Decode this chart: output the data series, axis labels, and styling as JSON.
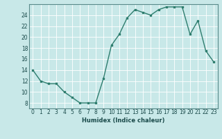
{
  "x": [
    0,
    1,
    2,
    3,
    4,
    5,
    6,
    7,
    8,
    9,
    10,
    11,
    12,
    13,
    14,
    15,
    16,
    17,
    18,
    19,
    20,
    21,
    22,
    23
  ],
  "y": [
    14,
    12,
    11.5,
    11.5,
    10,
    9,
    8,
    8,
    8,
    12.5,
    18.5,
    20.5,
    23.5,
    25,
    24.5,
    24,
    25,
    25.5,
    25.5,
    25.5,
    20.5,
    23,
    17.5,
    15.5
  ],
  "line_color": "#2e7d6e",
  "bg_color": "#c8e8e8",
  "grid_color": "#b0d8d8",
  "xlabel": "Humidex (Indice chaleur)",
  "ylabel_ticks": [
    8,
    10,
    12,
    14,
    16,
    18,
    20,
    22,
    24
  ],
  "xtick_labels": [
    "0",
    "1",
    "2",
    "3",
    "4",
    "5",
    "6",
    "7",
    "8",
    "9",
    "10",
    "11",
    "12",
    "13",
    "14",
    "15",
    "16",
    "17",
    "18",
    "19",
    "20",
    "21",
    "22",
    "23"
  ],
  "ylim": [
    7,
    26
  ],
  "xlim": [
    -0.5,
    23.5
  ],
  "xlabel_fontsize": 6.0,
  "tick_fontsize": 5.5
}
